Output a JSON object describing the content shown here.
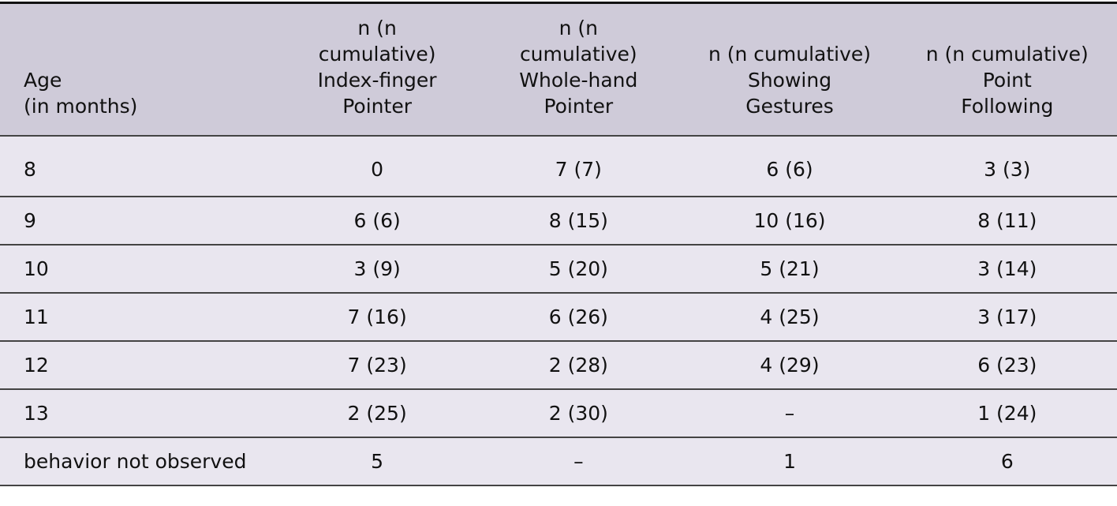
{
  "table": {
    "headers": [
      [
        "Age",
        "(in months)"
      ],
      [
        "n (n",
        "cumulative)",
        "Index-finger",
        "Pointer"
      ],
      [
        "n (n",
        "cumulative)",
        "Whole-hand",
        "Pointer"
      ],
      [
        "n (n cumulative)",
        "Showing",
        "Gestures"
      ],
      [
        "n (n cumulative)",
        "Point",
        "Following"
      ]
    ],
    "rows": [
      [
        "8",
        "0",
        "7 (7)",
        "6 (6)",
        "3 (3)"
      ],
      [
        "9",
        "6 (6)",
        "8 (15)",
        "10 (16)",
        "8 (11)"
      ],
      [
        "10",
        "3 (9)",
        "5 (20)",
        "5 (21)",
        "3 (14)"
      ],
      [
        "11",
        "7 (16)",
        "6 (26)",
        "4 (25)",
        "3 (17)"
      ],
      [
        "12",
        "7 (23)",
        "2 (28)",
        "4 (29)",
        "6 (23)"
      ],
      [
        "13",
        "2 (25)",
        "2 (30)",
        "–",
        "1 (24)"
      ],
      [
        "behavior not observed",
        "5",
        "–",
        "1",
        "6"
      ]
    ],
    "colors": {
      "header_bg": "#cfcbd9",
      "row_bg": "#e9e6ef",
      "border": "#444444"
    }
  }
}
